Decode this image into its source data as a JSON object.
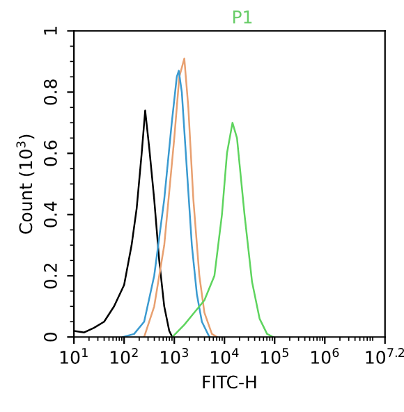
{
  "chart_data": {
    "type": "line",
    "xlabel": "FITC-H",
    "ylabel": "Count (10$^{3}$)",
    "annotations": [
      "P1"
    ],
    "log": "x",
    "xlim": [
      10,
      15848932
    ],
    "ylim": [
      0,
      1
    ],
    "xticks": [
      {
        "value": 10,
        "label": "10$^{1}$"
      },
      {
        "value": 100,
        "label": "10$^{2}$"
      },
      {
        "value": 1000,
        "label": "10$^{3}$"
      },
      {
        "value": 10000,
        "label": "10$^{4}$"
      },
      {
        "value": 100000,
        "label": "10$^{5}$"
      },
      {
        "value": 1000000,
        "label": "10$^{6}$"
      },
      {
        "value": 15848932,
        "label": "10$^{7.2}$"
      }
    ],
    "yticks": [
      0,
      0.2,
      0.4,
      0.6,
      0.8,
      1
    ],
    "grid": false,
    "legend": false,
    "series": [
      {
        "color": "#000000",
        "x": [
          10,
          16,
          25,
          40,
          63,
          100,
          141,
          178,
          224,
          263,
          316,
          398,
          501,
          631,
          794,
          912
        ],
        "values": [
          0.02,
          0.015,
          0.03,
          0.05,
          0.1,
          0.17,
          0.3,
          0.42,
          0.6,
          0.74,
          0.62,
          0.45,
          0.25,
          0.1,
          0.02,
          0
        ]
      },
      {
        "color": "#e8a070",
        "x": [
          251,
          398,
          631,
          1000,
          1259,
          1585,
          1905,
          2399,
          3162,
          3981,
          5623,
          7079
        ],
        "values": [
          0,
          0.1,
          0.3,
          0.65,
          0.85,
          0.91,
          0.75,
          0.45,
          0.2,
          0.08,
          0.01,
          0
        ]
      },
      {
        "color": "#3a9ad0",
        "x": [
          95,
          158,
          251,
          398,
          631,
          891,
          1122,
          1230,
          1413,
          1778,
          2239,
          2818,
          3548,
          5012
        ],
        "values": [
          0,
          0.01,
          0.05,
          0.2,
          0.45,
          0.7,
          0.85,
          0.87,
          0.8,
          0.55,
          0.3,
          0.14,
          0.05,
          0
        ]
      },
      {
        "color": "#5ed45e",
        "x": [
          912,
          1585,
          2512,
          3981,
          6310,
          8913,
          11220,
          14450,
          17780,
          25120,
          35480,
          50120,
          70790,
          93330
        ],
        "values": [
          0,
          0.04,
          0.08,
          0.12,
          0.2,
          0.4,
          0.6,
          0.7,
          0.65,
          0.4,
          0.18,
          0.06,
          0.01,
          0
        ]
      }
    ]
  }
}
